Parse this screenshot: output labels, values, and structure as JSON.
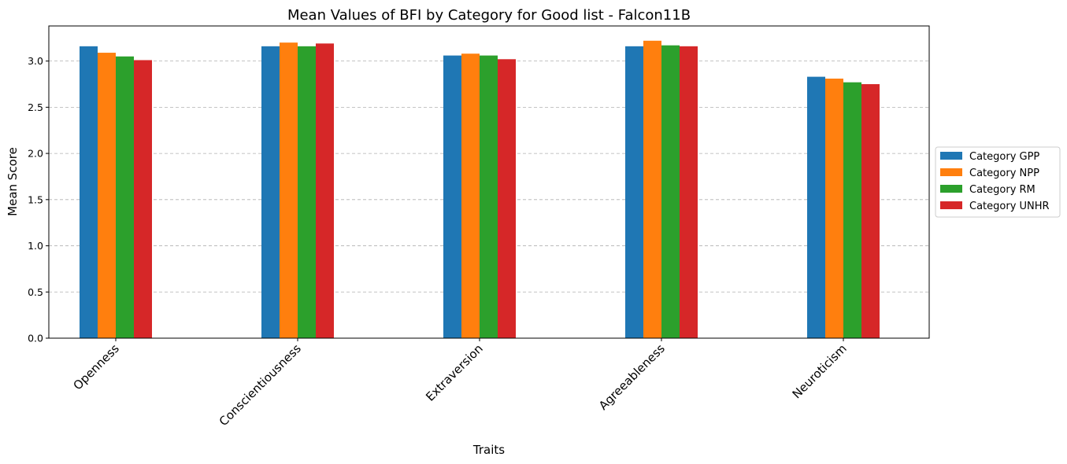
{
  "chart_data": {
    "type": "bar",
    "title": "Mean Values of BFI by Category for Good list - Falcon11B",
    "xlabel": "Traits",
    "ylabel": "Mean Score",
    "categories": [
      "Openness",
      "Conscientiousness",
      "Extraversion",
      "Agreeableness",
      "Neuroticism"
    ],
    "series": [
      {
        "name": "Category GPP",
        "color": "#1f77b4",
        "values": [
          3.16,
          3.16,
          3.06,
          3.16,
          2.83
        ]
      },
      {
        "name": "Category NPP",
        "color": "#ff7f0e",
        "values": [
          3.09,
          3.2,
          3.08,
          3.22,
          2.81
        ]
      },
      {
        "name": "Category RM",
        "color": "#2ca02c",
        "values": [
          3.05,
          3.16,
          3.06,
          3.17,
          2.77
        ]
      },
      {
        "name": "Category UNHR",
        "color": "#d62728",
        "values": [
          3.01,
          3.19,
          3.02,
          3.16,
          2.75
        ]
      }
    ],
    "yticks": [
      "0.0",
      "0.5",
      "1.0",
      "1.5",
      "2.0",
      "2.5",
      "3.0"
    ],
    "ylim": [
      0,
      3.38
    ],
    "grid": "y-dashed",
    "legend_position": "right"
  }
}
